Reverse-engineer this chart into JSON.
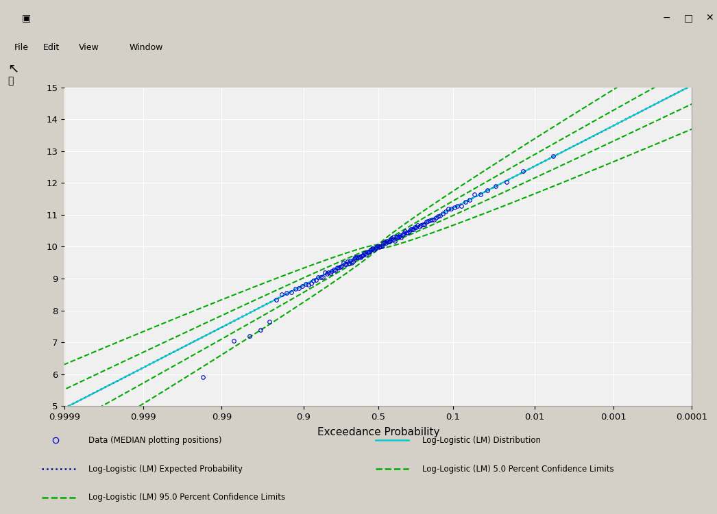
{
  "xlabel": "Exceedance Probability",
  "ylim": [
    5,
    15
  ],
  "yticks": [
    5,
    6,
    7,
    8,
    9,
    10,
    11,
    12,
    13,
    14,
    15
  ],
  "xprob_ticks": [
    0.9999,
    0.999,
    0.99,
    0.9,
    0.5,
    0.1,
    0.01,
    0.001,
    0.0001
  ],
  "xprob_labels": [
    "0.9999",
    "0.999",
    "0.99",
    "0.9",
    "0.5",
    "0.1",
    "0.01",
    "0.001",
    "0.0001"
  ],
  "plot_bg_color": "#f0f0f0",
  "window_bg_color": "#d4d0c8",
  "data_color": "#0000cd",
  "dist_color": "#00cccc",
  "expected_color": "#00008b",
  "ci_color": "#00aa00",
  "logistic_mu": 10.0,
  "logistic_s": 0.55,
  "n_data": 120,
  "legend_labels": [
    "Data (MEDIAN plotting positions)",
    "Log-Logistic (LM) Expected Probability",
    "Log-Logistic (LM) 95.0 Percent Confidence Limits",
    "Log-Logistic (LM) Distribution",
    "Log-Logistic (LM) 5.0 Percent Confidence Limits"
  ]
}
